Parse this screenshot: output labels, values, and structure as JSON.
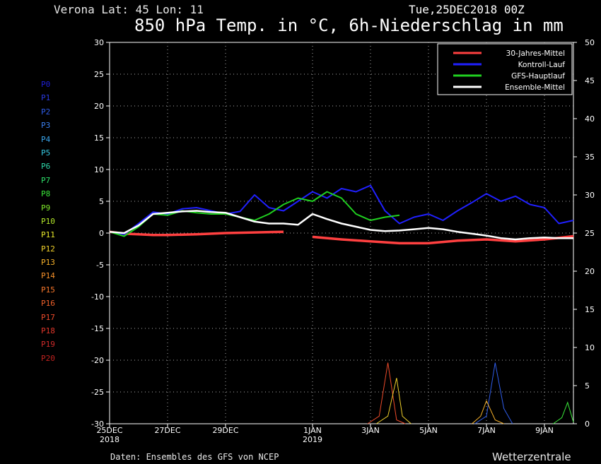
{
  "header": {
    "location": "Verona   Lat: 45 Lon: 11",
    "run_date": "Tue,25DEC2018 00Z",
    "title": "850 hPa Temp. in °C, 6h-Niederschlag in mm"
  },
  "footer": {
    "source": "Daten: Ensembles des GFS von NCEP",
    "brand": "Wetterzentrale"
  },
  "members": [
    {
      "label": "P0",
      "color": "#1f1fd6"
    },
    {
      "label": "P1",
      "color": "#2a3ae0"
    },
    {
      "label": "P2",
      "color": "#2f5ce8"
    },
    {
      "label": "P3",
      "color": "#3a7fee"
    },
    {
      "label": "P4",
      "color": "#3aa6ee"
    },
    {
      "label": "P5",
      "color": "#35c8e0"
    },
    {
      "label": "P6",
      "color": "#2ed6a8"
    },
    {
      "label": "P7",
      "color": "#2ee06a"
    },
    {
      "label": "P8",
      "color": "#3ae83a"
    },
    {
      "label": "P9",
      "color": "#7fe82a"
    },
    {
      "label": "P10",
      "color": "#b4e82a"
    },
    {
      "label": "P11",
      "color": "#e8e82a"
    },
    {
      "label": "P12",
      "color": "#f0d02a"
    },
    {
      "label": "P13",
      "color": "#f5b02a"
    },
    {
      "label": "P14",
      "color": "#f5902a"
    },
    {
      "label": "P15",
      "color": "#f5762a"
    },
    {
      "label": "P16",
      "color": "#f0602a"
    },
    {
      "label": "P17",
      "color": "#ec4a2a"
    },
    {
      "label": "P18",
      "color": "#e0362a"
    },
    {
      "label": "P19",
      "color": "#d02a2a"
    },
    {
      "label": "P20",
      "color": "#c0221f"
    }
  ],
  "chart_data": {
    "type": "line",
    "title": "850 hPa Temp. in °C, 6h-Niederschlag in mm",
    "x_range_days": [
      0,
      16
    ],
    "x_ticks": [
      {
        "day": 0,
        "label": "25DEC",
        "sub": "2018"
      },
      {
        "day": 2,
        "label": "27DEC",
        "sub": ""
      },
      {
        "day": 4,
        "label": "29DEC",
        "sub": ""
      },
      {
        "day": 7,
        "label": "1JAN",
        "sub": "2019"
      },
      {
        "day": 9,
        "label": "3JAN",
        "sub": ""
      },
      {
        "day": 11,
        "label": "5JAN",
        "sub": ""
      },
      {
        "day": 13,
        "label": "7JAN",
        "sub": ""
      },
      {
        "day": 15,
        "label": "9JAN",
        "sub": ""
      }
    ],
    "y_left": {
      "label": "°C",
      "range": [
        -30,
        30
      ],
      "ticks": [
        30,
        25,
        20,
        15,
        10,
        5,
        0,
        -5,
        -10,
        -15,
        -20,
        -25,
        -30
      ]
    },
    "y_right": {
      "label": "mm",
      "range": [
        0,
        50
      ],
      "ticks": [
        50,
        45,
        40,
        35,
        30,
        25,
        20,
        15,
        10,
        5,
        0
      ]
    },
    "grid": true,
    "legend_position": "top-right",
    "legend": [
      {
        "name": "30-Jahres-Mittel",
        "color": "#ff4040"
      },
      {
        "name": "Kontroll-Lauf",
        "color": "#2020ff"
      },
      {
        "name": "GFS-Hauptlauf",
        "color": "#20d020"
      },
      {
        "name": "Ensemble-Mittel",
        "color": "#ffffff"
      }
    ],
    "series": [
      {
        "name": "30-Jahres-Mittel",
        "color": "#ff4040",
        "width": 3.5,
        "x": [
          0,
          0.5,
          1,
          1.5,
          2,
          3,
          4,
          5,
          6
        ],
        "y": [
          0.2,
          -0.1,
          -0.2,
          -0.3,
          -0.3,
          -0.2,
          0.0,
          0.1,
          0.2
        ]
      },
      {
        "name": "30-Jahres-Mittel",
        "color": "#ff4040",
        "width": 3.5,
        "x": [
          7,
          8,
          9,
          10,
          11,
          12,
          13,
          14,
          15,
          16
        ],
        "y": [
          -0.6,
          -1.0,
          -1.3,
          -1.6,
          -1.6,
          -1.2,
          -1.0,
          -1.3,
          -1.0,
          -0.5
        ]
      },
      {
        "name": "Kontroll-Lauf",
        "color": "#2020ff",
        "width": 2,
        "x": [
          0,
          0.5,
          1,
          1.5,
          2,
          2.5,
          3,
          3.5,
          4,
          4.5,
          5,
          5.5,
          6,
          6.5,
          7,
          7.5,
          8,
          8.5,
          9,
          9.5,
          10,
          10.5,
          11,
          11.5,
          12,
          12.5,
          13,
          13.5,
          14,
          14.5,
          15,
          15.5,
          16
        ],
        "y": [
          0.2,
          -0.2,
          1.5,
          3.3,
          3.0,
          3.8,
          4.0,
          3.5,
          3.0,
          3.4,
          6.0,
          4.0,
          3.5,
          5.0,
          6.5,
          5.5,
          7.0,
          6.5,
          7.5,
          3.5,
          1.5,
          2.5,
          3.0,
          2.0,
          3.5,
          4.8,
          6.2,
          5.0,
          5.8,
          4.5,
          4.0,
          1.5,
          2.0
        ]
      },
      {
        "name": "GFS-Hauptlauf",
        "color": "#20d020",
        "width": 2,
        "x": [
          0,
          0.5,
          1,
          1.5,
          2,
          2.5,
          3,
          3.5,
          4,
          4.5,
          5,
          5.5,
          6,
          6.5,
          7,
          7.5,
          8,
          8.5,
          9,
          9.5,
          10
        ],
        "y": [
          0.2,
          -0.5,
          1.0,
          3.0,
          2.8,
          3.5,
          3.2,
          3.0,
          3.0,
          2.5,
          2.0,
          3.0,
          4.5,
          5.5,
          5.0,
          6.5,
          5.5,
          3.0,
          2.0,
          2.5,
          2.8
        ]
      },
      {
        "name": "Ensemble-Mittel",
        "color": "#ffffff",
        "width": 2.5,
        "x": [
          0,
          0.5,
          1,
          1.5,
          2,
          2.5,
          3,
          3.5,
          4,
          4.5,
          5,
          5.5,
          6,
          6.5,
          7,
          7.5,
          8,
          8.5,
          9,
          9.5,
          10,
          10.5,
          11,
          11.5,
          12,
          12.5,
          13,
          13.5,
          14,
          14.5,
          15,
          15.5,
          16
        ],
        "y": [
          0.2,
          0.0,
          1.2,
          3.0,
          3.2,
          3.4,
          3.5,
          3.3,
          3.2,
          2.5,
          1.8,
          1.5,
          1.5,
          1.3,
          3.0,
          2.2,
          1.5,
          1.0,
          0.5,
          0.3,
          0.4,
          0.6,
          0.8,
          0.6,
          0.2,
          -0.1,
          -0.4,
          -0.8,
          -1.0,
          -0.8,
          -0.7,
          -0.8,
          -0.8
        ]
      }
    ],
    "precip_series": [
      {
        "name": "P17",
        "color": "#ec4a2a",
        "x": [
          8.9,
          9.3,
          9.6,
          9.9,
          10.2
        ],
        "y": [
          0,
          1.0,
          8.0,
          0.5,
          0
        ]
      },
      {
        "name": "P12",
        "color": "#f0d02a",
        "x": [
          9.2,
          9.6,
          9.9,
          10.1,
          10.4
        ],
        "y": [
          0,
          1.0,
          6.0,
          1.0,
          0
        ]
      },
      {
        "name": "P2",
        "color": "#2f5ce8",
        "x": [
          12.6,
          13.0,
          13.3,
          13.6,
          13.9
        ],
        "y": [
          0,
          1.0,
          8.0,
          2.0,
          0
        ]
      },
      {
        "name": "P13",
        "color": "#f5b02a",
        "x": [
          12.5,
          12.8,
          13.0,
          13.3,
          13.6
        ],
        "y": [
          0,
          1.0,
          3.0,
          0.5,
          0
        ]
      },
      {
        "name": "P8",
        "color": "#3ae83a",
        "x": [
          15.3,
          15.6,
          15.8,
          16.0
        ],
        "y": [
          0,
          0.8,
          2.8,
          0.2
        ]
      }
    ]
  }
}
